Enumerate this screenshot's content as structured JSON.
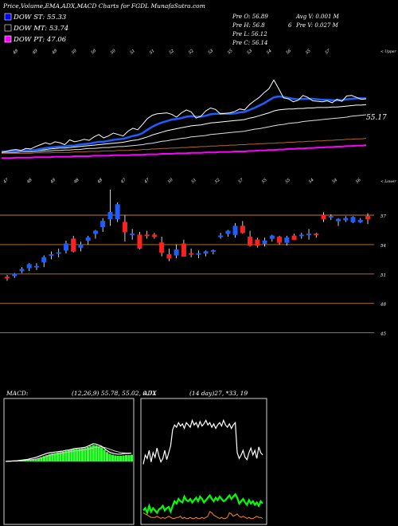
{
  "header": {
    "title": "Price,Volume,EMA,ADX,MACD Charts for FGDL MunafaSutra.com",
    "pre_o": "Pre  O: 56.89",
    "pre_h": "Pre  H: 56.8",
    "pre_l": "Pre  L: 56.12",
    "pre_c": "Pre  C: 56.14",
    "avg_v": "Avg V: 0.001 M",
    "pre_v": "Pre  V: 0.027 M",
    "six": "6"
  },
  "legend": [
    {
      "label": "DOW ST: 55.33",
      "color": "#0000ff"
    },
    {
      "label": "DOW MT: 53.74",
      "color": "#000000"
    },
    {
      "label": "DOW PT: 47.06",
      "color": "#ff00ff"
    }
  ],
  "ema_panel": {
    "top_labels": [
      "49",
      "49",
      "49",
      "50",
      "50",
      "50",
      "51",
      "51",
      "52",
      "52",
      "53",
      "55",
      "53",
      "54",
      "56",
      "55",
      "57"
    ],
    "upper_tag": "< Upper",
    "lower_tag": "< Lower",
    "last_value": "55.17",
    "bottom_labels": [
      "47",
      "48",
      "49",
      "48",
      "48",
      "47",
      "47",
      "50",
      "51",
      "52",
      "57",
      "55",
      "55",
      "54",
      "54",
      "56"
    ]
  },
  "price_panel": {
    "axis_labels": [
      "57",
      "54",
      "51",
      "48",
      "45"
    ],
    "levels": [
      57,
      54,
      51,
      48,
      45
    ]
  },
  "macd_panel": {
    "label": "MACD:",
    "values": "(12,26,9) 55.78, 55.02, 0.71"
  },
  "adx_panel": {
    "label": "ADX",
    "values": "(14 day)27, *33, 19"
  },
  "colors": {
    "up": "#1e5eff",
    "down": "#ff2020",
    "grid": "#c87a28",
    "ema_white": "#ffffff",
    "ema_magenta": "#ff00ff",
    "ema_brown": "#b5651d",
    "macd_hist": "#33ff33",
    "adx_green": "#00ff00",
    "adx_orange": "#ff8800"
  },
  "chart_data": {
    "type": "candlestick",
    "y_ticks": [
      57,
      54,
      51,
      48,
      45
    ],
    "candles": [
      {
        "o": 50.7,
        "h": 50.9,
        "l": 50.3,
        "c": 50.6
      },
      {
        "o": 50.8,
        "h": 51.1,
        "l": 50.6,
        "c": 51.0
      },
      {
        "o": 51.3,
        "h": 51.7,
        "l": 51.1,
        "c": 51.5
      },
      {
        "o": 51.6,
        "h": 52.1,
        "l": 51.3,
        "c": 52.0
      },
      {
        "o": 51.7,
        "h": 52.1,
        "l": 51.4,
        "c": 51.8
      },
      {
        "o": 52.2,
        "h": 52.9,
        "l": 51.7,
        "c": 52.7
      },
      {
        "o": 52.9,
        "h": 53.3,
        "l": 52.5,
        "c": 53.0
      },
      {
        "o": 53.1,
        "h": 53.6,
        "l": 52.7,
        "c": 53.2
      },
      {
        "o": 53.4,
        "h": 54.4,
        "l": 53.1,
        "c": 54.1
      },
      {
        "o": 54.6,
        "h": 54.9,
        "l": 53.2,
        "c": 53.3
      },
      {
        "o": 53.7,
        "h": 54.3,
        "l": 53.3,
        "c": 54.0
      },
      {
        "o": 54.4,
        "h": 54.9,
        "l": 54.0,
        "c": 54.7
      },
      {
        "o": 55.1,
        "h": 55.5,
        "l": 54.6,
        "c": 55.4
      },
      {
        "o": 55.8,
        "h": 56.7,
        "l": 55.3,
        "c": 56.4
      },
      {
        "o": 56.6,
        "h": 59.6,
        "l": 55.9,
        "c": 57.3
      },
      {
        "o": 56.6,
        "h": 58.3,
        "l": 56.3,
        "c": 58.1
      },
      {
        "o": 56.3,
        "h": 57.0,
        "l": 54.3,
        "c": 55.3
      },
      {
        "o": 55.1,
        "h": 55.6,
        "l": 54.5,
        "c": 55.1
      },
      {
        "o": 55.0,
        "h": 55.3,
        "l": 53.5,
        "c": 53.6
      },
      {
        "o": 55.0,
        "h": 55.4,
        "l": 54.6,
        "c": 54.9
      },
      {
        "o": 55.0,
        "h": 55.2,
        "l": 54.6,
        "c": 54.8
      },
      {
        "o": 54.2,
        "h": 54.8,
        "l": 52.8,
        "c": 53.2
      },
      {
        "o": 53.0,
        "h": 53.6,
        "l": 52.3,
        "c": 52.6
      },
      {
        "o": 52.9,
        "h": 54.0,
        "l": 52.6,
        "c": 53.5
      },
      {
        "o": 54.1,
        "h": 54.5,
        "l": 52.8,
        "c": 52.8
      },
      {
        "o": 53.1,
        "h": 53.6,
        "l": 52.7,
        "c": 53.0
      },
      {
        "o": 53.0,
        "h": 53.4,
        "l": 52.6,
        "c": 53.1
      },
      {
        "o": 53.1,
        "h": 53.4,
        "l": 52.8,
        "c": 53.3
      },
      {
        "o": 53.3,
        "h": 53.5,
        "l": 53.0,
        "c": 53.4
      },
      {
        "o": 54.8,
        "h": 55.2,
        "l": 54.6,
        "c": 54.9
      },
      {
        "o": 55.1,
        "h": 55.5,
        "l": 54.8,
        "c": 55.4
      },
      {
        "o": 55.0,
        "h": 56.2,
        "l": 54.7,
        "c": 55.9
      },
      {
        "o": 55.9,
        "h": 56.4,
        "l": 55.1,
        "c": 55.2
      },
      {
        "o": 54.8,
        "h": 55.4,
        "l": 53.8,
        "c": 53.9
      },
      {
        "o": 54.5,
        "h": 54.7,
        "l": 53.7,
        "c": 53.9
      },
      {
        "o": 54.1,
        "h": 54.7,
        "l": 53.8,
        "c": 54.4
      },
      {
        "o": 54.6,
        "h": 55.0,
        "l": 54.3,
        "c": 54.9
      },
      {
        "o": 54.8,
        "h": 54.9,
        "l": 54.0,
        "c": 54.2
      },
      {
        "o": 54.2,
        "h": 54.9,
        "l": 53.9,
        "c": 54.7
      },
      {
        "o": 54.9,
        "h": 55.1,
        "l": 54.5,
        "c": 54.5
      },
      {
        "o": 54.9,
        "h": 55.2,
        "l": 54.6,
        "c": 55.0
      },
      {
        "o": 55.0,
        "h": 55.6,
        "l": 54.5,
        "c": 55.1
      },
      {
        "o": 55.1,
        "h": 55.2,
        "l": 54.7,
        "c": 55.0
      },
      {
        "o": 57.0,
        "h": 57.3,
        "l": 56.3,
        "c": 56.6
      },
      {
        "o": 56.9,
        "h": 57.1,
        "l": 56.5,
        "c": 56.9
      },
      {
        "o": 56.4,
        "h": 56.7,
        "l": 55.9,
        "c": 56.6
      },
      {
        "o": 56.5,
        "h": 56.9,
        "l": 56.3,
        "c": 56.7
      },
      {
        "o": 56.3,
        "h": 56.9,
        "l": 56.2,
        "c": 56.8
      },
      {
        "o": 56.3,
        "h": 56.7,
        "l": 56.2,
        "c": 56.5
      },
      {
        "o": 56.9,
        "h": 57.2,
        "l": 56.1,
        "c": 56.6
      }
    ],
    "ema_close": [
      46.8,
      47.0,
      47.3,
      47.4,
      47.2,
      47.6,
      47.5,
      48.0,
      48.4,
      48.8,
      48.5,
      49.0,
      48.8,
      48.4,
      49.4,
      49.0,
      49.2,
      49.5,
      49.3,
      50.0,
      50.5,
      49.8,
      50.2,
      50.8,
      50.5,
      50.2,
      51.2,
      51.8,
      51.5,
      52.6,
      53.8,
      54.5,
      54.8,
      54.9,
      55.0,
      54.7,
      54.1,
      55.0,
      55.6,
      55.2,
      53.9,
      54.3,
      55.4,
      56.0,
      55.7,
      54.8,
      54.9,
      55.0,
      55.3,
      55.8,
      55.6,
      56.7,
      57.5,
      58.2,
      59.2,
      60.0,
      61.8,
      60.0,
      58.1,
      57.9,
      57.3,
      57.6,
      58.6,
      58.2,
      57.5,
      57.4,
      57.3,
      57.5,
      57.1,
      57.8,
      57.4,
      58.5,
      58.6,
      58.2,
      57.8,
      57.9
    ],
    "ema_short": [
      47.0,
      47.0,
      47.1,
      47.1,
      47.1,
      47.2,
      47.2,
      47.3,
      47.5,
      47.7,
      47.8,
      47.9,
      48.0,
      48.0,
      48.2,
      48.2,
      48.4,
      48.5,
      48.6,
      48.8,
      49.0,
      49.0,
      49.2,
      49.4,
      49.5,
      49.6,
      49.9,
      50.2,
      50.4,
      50.8,
      51.5,
      52.1,
      52.6,
      53.0,
      53.3,
      53.6,
      53.7,
      53.9,
      54.2,
      54.3,
      54.2,
      54.2,
      54.4,
      54.7,
      54.8,
      54.8,
      54.8,
      54.8,
      54.9,
      55.1,
      55.2,
      55.6,
      56.0,
      56.5,
      57.0,
      57.6,
      58.2,
      58.4,
      58.3,
      58.1,
      57.9,
      57.8,
      57.9,
      57.9,
      57.9,
      57.8,
      57.7,
      57.7,
      57.6,
      57.6,
      57.6,
      57.8,
      57.9,
      58.0,
      58.0,
      58.0
    ],
    "ema_mid": [
      46.9,
      46.9,
      47.0,
      47.0,
      47.0,
      47.1,
      47.1,
      47.2,
      47.3,
      47.4,
      47.5,
      47.6,
      47.7,
      47.7,
      47.8,
      47.9,
      48.0,
      48.1,
      48.2,
      48.3,
      48.4,
      48.5,
      48.6,
      48.7,
      48.8,
      48.9,
      49.1,
      49.3,
      49.4,
      49.7,
      50.0,
      50.4,
      50.7,
      51.0,
      51.3,
      51.5,
      51.7,
      51.9,
      52.1,
      52.3,
      52.4,
      52.5,
      52.7,
      52.9,
      53.0,
      53.1,
      53.2,
      53.3,
      53.4,
      53.5,
      53.6,
      53.9,
      54.1,
      54.4,
      54.7,
      55.0,
      55.4,
      55.6,
      55.7,
      55.8,
      55.8,
      55.9,
      55.9,
      56.0,
      56.0,
      56.1,
      56.1,
      56.1,
      56.2,
      56.2,
      56.3,
      56.4,
      56.5,
      56.6,
      56.6,
      56.7
    ],
    "ema_long": [
      46.8,
      46.8,
      46.8,
      46.8,
      46.9,
      46.9,
      46.9,
      47.0,
      47.0,
      47.1,
      47.1,
      47.2,
      47.2,
      47.3,
      47.3,
      47.4,
      47.4,
      47.5,
      47.6,
      47.6,
      47.7,
      47.8,
      47.8,
      47.9,
      48.0,
      48.0,
      48.1,
      48.2,
      48.3,
      48.4,
      48.6,
      48.7,
      48.9,
      49.1,
      49.2,
      49.4,
      49.5,
      49.7,
      49.8,
      50.0,
      50.1,
      50.2,
      50.3,
      50.5,
      50.6,
      50.7,
      50.8,
      50.9,
      51.0,
      51.1,
      51.2,
      51.4,
      51.6,
      51.7,
      51.9,
      52.1,
      52.3,
      52.5,
      52.6,
      52.8,
      52.9,
      53.0,
      53.2,
      53.3,
      53.4,
      53.5,
      53.6,
      53.7,
      53.8,
      53.9,
      54.0,
      54.1,
      54.3,
      54.4,
      54.5,
      54.6
    ],
    "ema_slowest": [
      46.6,
      46.6,
      46.6,
      46.6,
      46.6,
      46.6,
      46.6,
      46.7,
      46.7,
      46.7,
      46.7,
      46.8,
      46.8,
      46.8,
      46.8,
      46.9,
      46.9,
      46.9,
      47.0,
      47.0,
      47.0,
      47.1,
      47.1,
      47.1,
      47.2,
      47.2,
      47.2,
      47.3,
      47.3,
      47.4,
      47.4,
      47.5,
      47.5,
      47.6,
      47.6,
      47.7,
      47.7,
      47.8,
      47.8,
      47.9,
      47.9,
      48.0,
      48.0,
      48.1,
      48.1,
      48.2,
      48.2,
      48.3,
      48.3,
      48.4,
      48.4,
      48.5,
      48.5,
      48.6,
      48.6,
      48.7,
      48.7,
      48.8,
      48.8,
      48.9,
      48.9,
      49.0,
      49.0,
      49.1,
      49.1,
      49.2,
      49.2,
      49.3,
      49.3,
      49.4,
      49.4,
      49.5,
      49.5,
      49.6,
      49.6,
      49.7
    ],
    "ema_pt": [
      45.6,
      45.6,
      45.6,
      45.7,
      45.7,
      45.7,
      45.7,
      45.8,
      45.8,
      45.8,
      45.8,
      45.9,
      45.9,
      45.9,
      45.9,
      46.0,
      46.0,
      46.0,
      46.0,
      46.1,
      46.1,
      46.1,
      46.1,
      46.2,
      46.2,
      46.2,
      46.2,
      46.3,
      46.3,
      46.3,
      46.4,
      46.4,
      46.4,
      46.5,
      46.5,
      46.5,
      46.6,
      46.6,
      46.6,
      46.7,
      46.7,
      46.7,
      46.8,
      46.8,
      46.8,
      46.9,
      46.9,
      46.9,
      47.0,
      47.0,
      47.0,
      47.1,
      47.1,
      47.2,
      47.2,
      47.3,
      47.3,
      47.4,
      47.4,
      47.5,
      47.5,
      47.6,
      47.6,
      47.7,
      47.7,
      47.8,
      47.8,
      47.9,
      47.9,
      48.0,
      48.0,
      48.1,
      48.1,
      48.2,
      48.2,
      48.3
    ],
    "macd_line": [
      0.0,
      0.1,
      0.1,
      0.2,
      0.2,
      0.3,
      0.4,
      0.5,
      0.6,
      0.8,
      1.0,
      1.2,
      1.5,
      1.8,
      2.1,
      2.4,
      2.6,
      2.7,
      2.8,
      2.9,
      3.0,
      3.1,
      3.3,
      3.4,
      3.6,
      3.8,
      3.9,
      4.0,
      4.1,
      4.2,
      4.5,
      4.9,
      5.3,
      5.2,
      4.9,
      4.6,
      4.0,
      3.3,
      2.8,
      2.5,
      2.3,
      2.2,
      2.2,
      2.3,
      2.4,
      2.4,
      2.5
    ],
    "macd_signal": [
      0.0,
      0.0,
      0.1,
      0.1,
      0.1,
      0.2,
      0.2,
      0.3,
      0.4,
      0.5,
      0.6,
      0.7,
      0.9,
      1.1,
      1.3,
      1.5,
      1.8,
      2.0,
      2.2,
      2.3,
      2.4,
      2.6,
      2.7,
      2.8,
      3.0,
      3.1,
      3.2,
      3.3,
      3.4,
      3.5,
      3.6,
      3.8,
      4.0,
      4.2,
      4.3,
      4.3,
      4.2,
      4.0,
      3.7,
      3.4,
      3.1,
      2.9,
      2.7,
      2.6,
      2.5,
      2.5,
      2.5
    ],
    "macd_hist": [
      0.0,
      0.05,
      0.05,
      0.1,
      0.1,
      0.15,
      0.2,
      0.3,
      0.4,
      0.5,
      0.6,
      0.8,
      1.0,
      1.3,
      1.6,
      1.9,
      2.2,
      2.4,
      2.5,
      2.7,
      2.8,
      2.9,
      3.1,
      3.3,
      3.5,
      3.6,
      3.7,
      3.8,
      3.9,
      4.0,
      4.3,
      4.6,
      4.9,
      4.8,
      4.5,
      4.1,
      3.5,
      2.8,
      2.3,
      2.0,
      1.8,
      1.7,
      1.7,
      1.8,
      1.9,
      1.9,
      2.0
    ],
    "adx_di_plus": [
      50,
      58,
      55,
      62,
      52,
      60,
      56,
      64,
      57,
      52,
      55,
      62,
      54,
      60,
      66,
      80,
      84,
      82,
      86,
      83,
      85,
      81,
      86,
      84,
      82,
      88,
      84,
      86,
      82,
      87,
      83,
      85,
      88,
      84,
      86,
      82,
      85,
      81,
      84,
      86,
      83,
      88,
      84,
      82,
      85,
      81,
      84,
      86,
      60,
      55,
      58,
      62,
      56,
      54,
      60,
      64,
      58,
      62,
      55,
      65,
      60,
      58
    ],
    "adx_di_minus": [
      10,
      12,
      8,
      14,
      9,
      12,
      10,
      8,
      11,
      12,
      14,
      10,
      12,
      13,
      9,
      14,
      18,
      16,
      20,
      18,
      17,
      22,
      19,
      18,
      20,
      17,
      19,
      21,
      18,
      22,
      20,
      17,
      19,
      21,
      23,
      20,
      18,
      21,
      19,
      22,
      20,
      18,
      19,
      21,
      23,
      20,
      22,
      24,
      21,
      16,
      18,
      20,
      17,
      15,
      19,
      16,
      18,
      15,
      17,
      14,
      18,
      16
    ],
    "adx_line": [
      8,
      7,
      6,
      5,
      4,
      4,
      4,
      5,
      4,
      3,
      4,
      3,
      4,
      5,
      4,
      3,
      3,
      4,
      4,
      5,
      3,
      4,
      3,
      3,
      4,
      3,
      3,
      4,
      3,
      3,
      4,
      3,
      4,
      5,
      9,
      8,
      6,
      5,
      4,
      3,
      4,
      3,
      3,
      4,
      8,
      7,
      5,
      6,
      7,
      5,
      4,
      5,
      4,
      3,
      4,
      3,
      3,
      4,
      5,
      4,
      4,
      3
    ]
  }
}
